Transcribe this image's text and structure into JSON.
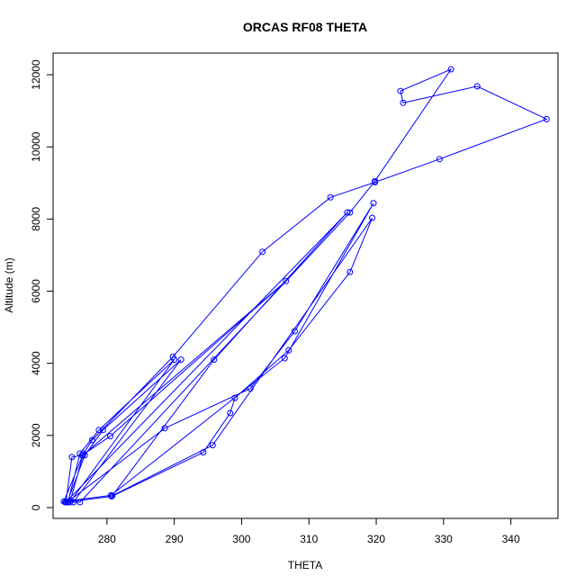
{
  "chart_data": {
    "type": "line",
    "title": "ORCAS RF08 THETA",
    "xlabel": "THETA",
    "ylabel": "Altitude (m)",
    "xlim": [
      272,
      347
    ],
    "ylim": [
      -300,
      12600
    ],
    "xticks": [
      280,
      290,
      300,
      310,
      320,
      330,
      340
    ],
    "yticks": [
      0,
      2000,
      4000,
      6000,
      8000,
      10000,
      12000
    ],
    "grid": false,
    "legend": "none",
    "colors": {
      "series": "#0000ff",
      "axis": "#000000"
    },
    "series": [
      {
        "x": [
          273.8,
          274.2,
          276.0,
          278.8,
          290.0,
          274.5,
          276.5,
          277.8,
          289.8,
          303.1,
          313.2,
          319.8,
          329.4,
          345.3,
          335.0,
          324.0,
          323.6,
          331.1,
          319.8,
          316.1,
          276.0,
          273.9,
          274.8,
          276.3,
          280.5,
          306.6,
          276.4,
          273.6,
          280.6,
          306.4,
          319.6,
          307.9,
          301.3,
          288.6,
          274.1,
          276.7,
          279.4,
          291.0,
          275.0,
          274.2,
          280.7,
          294.3,
          298.3,
          299.0,
          307.0,
          316.1,
          319.4,
          295.7,
          280.8,
          295.9,
          315.7,
          273.9
        ],
        "y": [
          150,
          150,
          1500,
          2150,
          4100,
          150,
          1500,
          1870,
          4180,
          7090,
          8600,
          9020,
          9660,
          10770,
          11680,
          11220,
          11550,
          12150,
          9050,
          8180,
          150,
          150,
          1400,
          1450,
          1980,
          6280,
          1450,
          170,
          340,
          4140,
          8440,
          4890,
          3300,
          2200,
          150,
          1450,
          2150,
          4100,
          150,
          160,
          310,
          1530,
          2620,
          3040,
          4360,
          6530,
          8030,
          1730,
          330,
          4100,
          8180,
          150
        ]
      }
    ]
  }
}
